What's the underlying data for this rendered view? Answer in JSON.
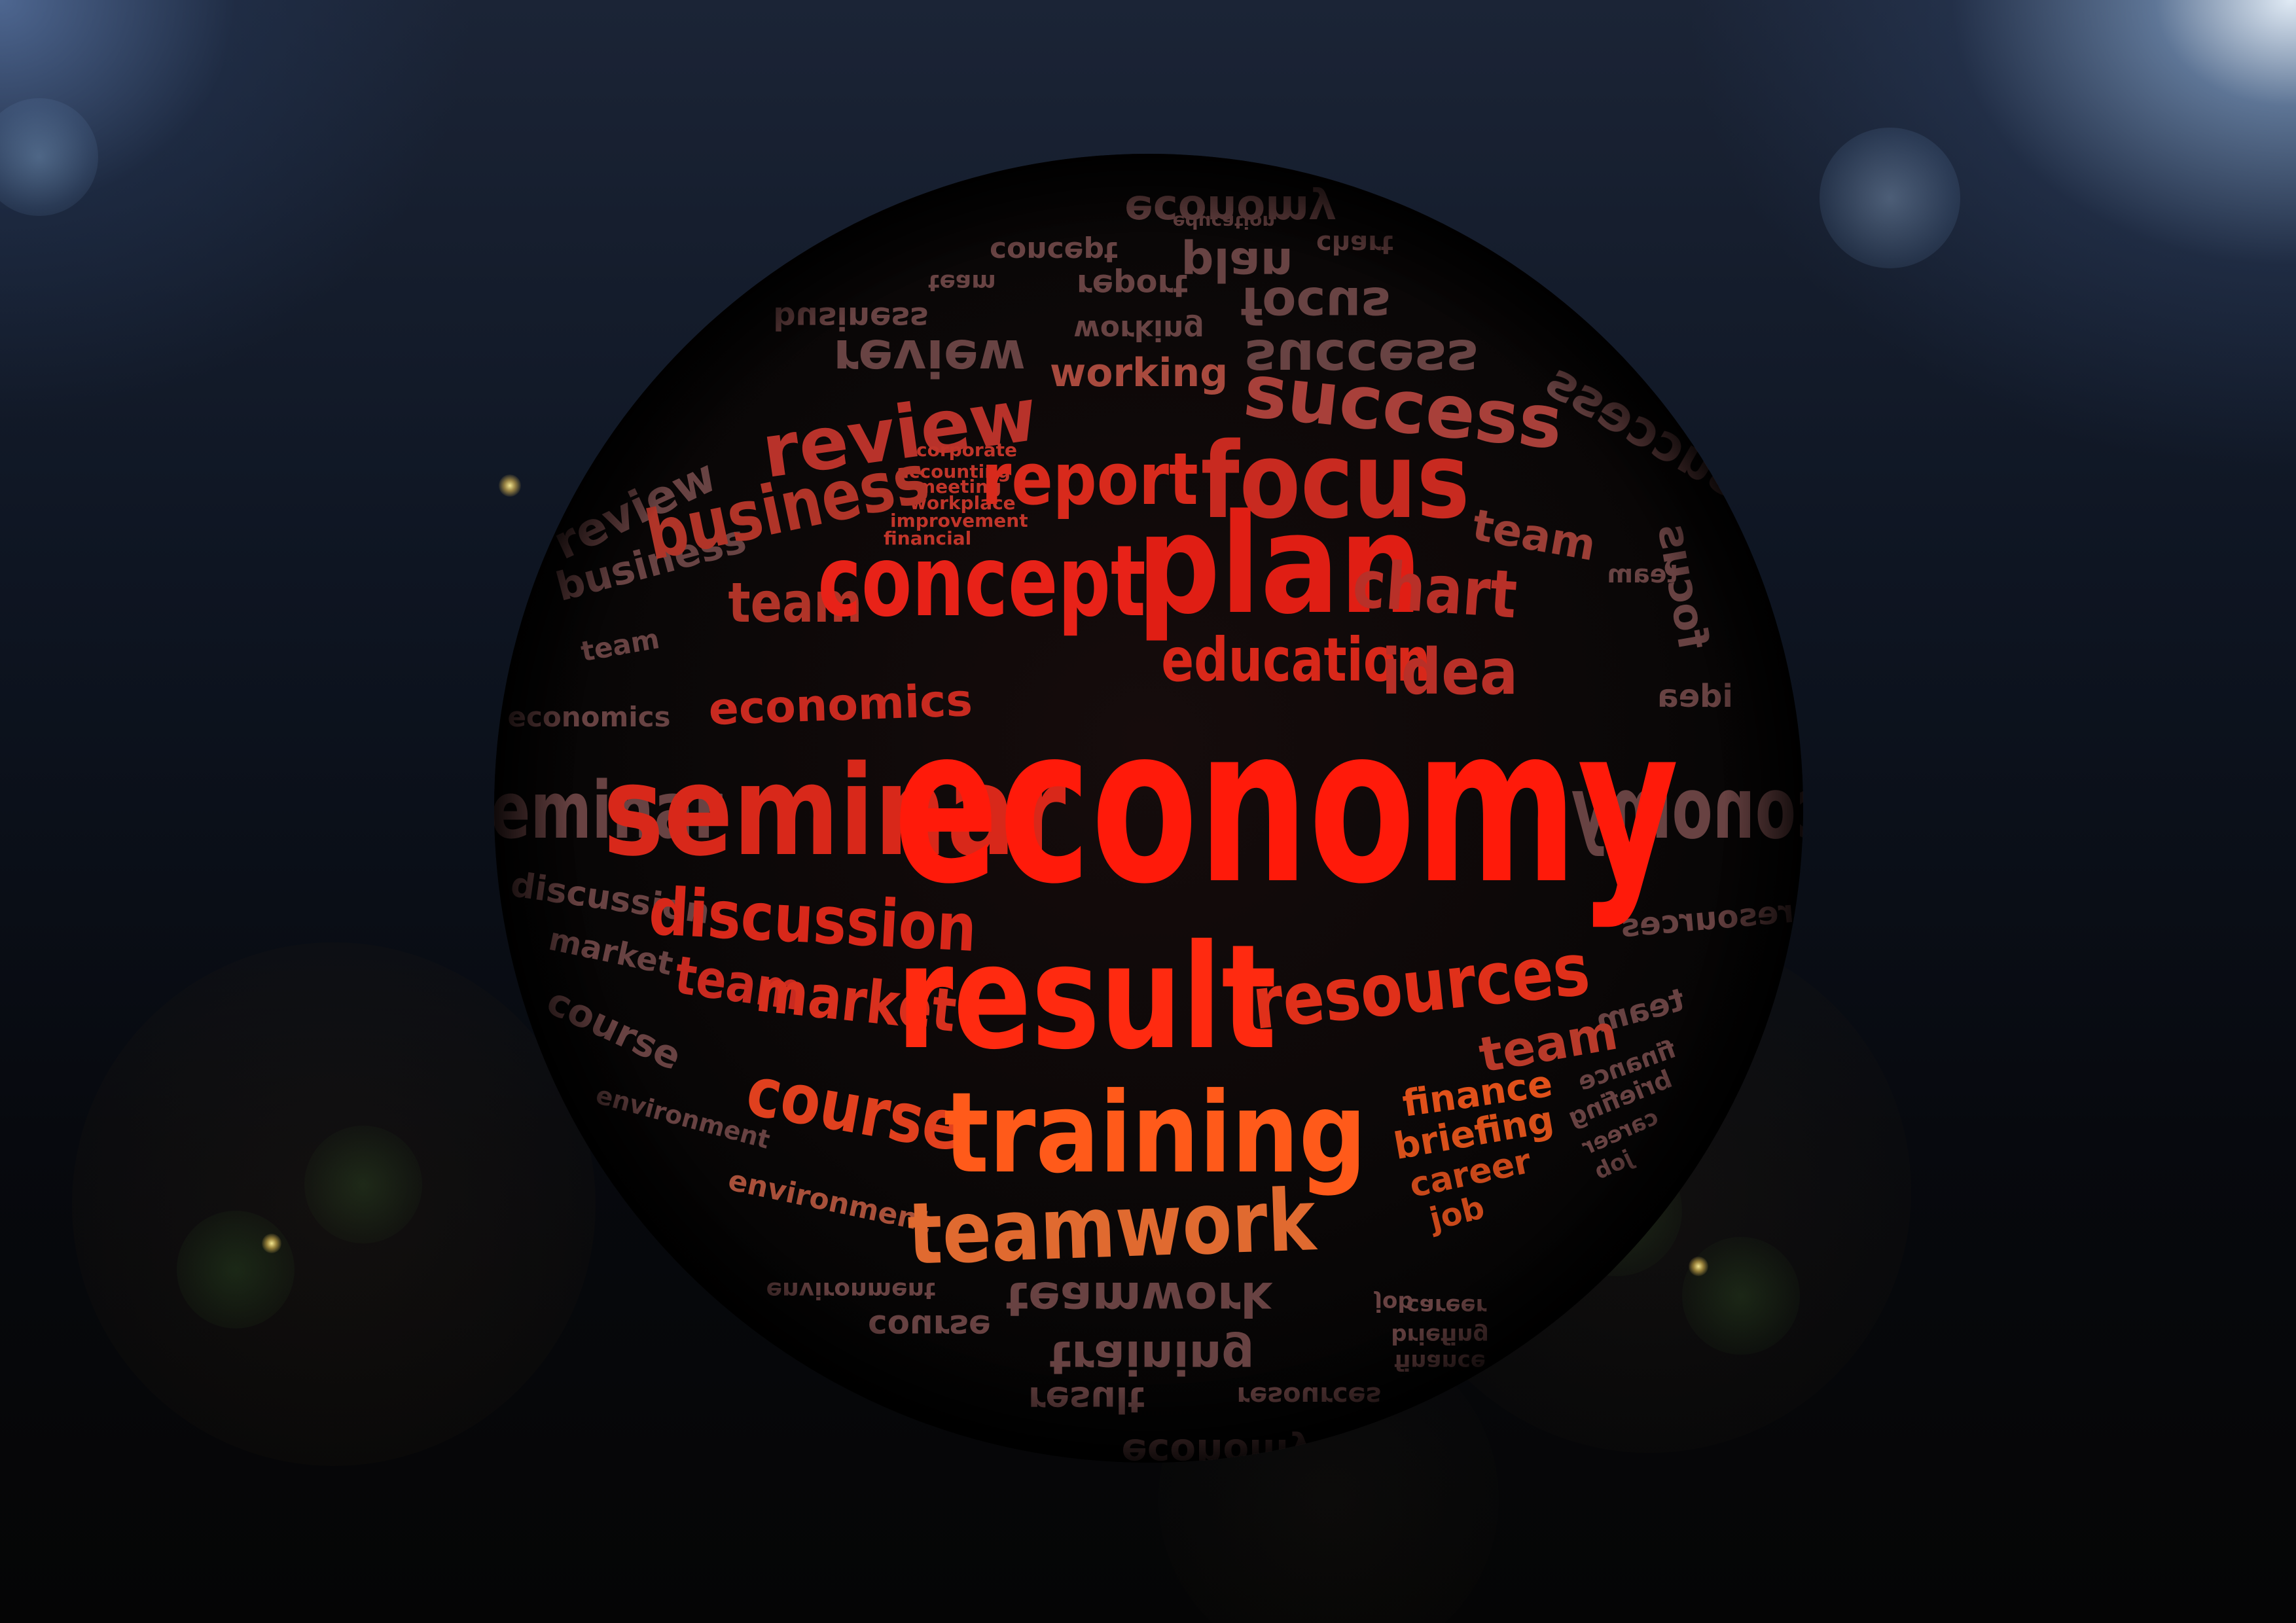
{
  "colors": {
    "accent": "#ff1a0a",
    "mid_red": "#e0301a",
    "orange": "#ff6a1a",
    "faded": "#8a5a5a",
    "background": "#07090f",
    "light": "#eaf4ff"
  },
  "words": {
    "economy": "economy",
    "seminar": "seminar",
    "result": "result",
    "plan": "plan",
    "focus": "focus",
    "training": "training",
    "teamwork": "teamwork",
    "concept": "concept",
    "review": "review",
    "success": "success",
    "business": "business",
    "report": "report",
    "chart": "chart",
    "idea": "idea",
    "education": "education",
    "economics": "economics",
    "discussion": "discussion",
    "resources": "resources",
    "team": "team",
    "market": "market",
    "course": "course",
    "environment": "environment",
    "finance": "finance",
    "briefing": "briefing",
    "career": "career",
    "job": "job",
    "working": "working",
    "corporate": "corporate",
    "accounting": "accounting",
    "meeting": "meeting",
    "workplace": "workplace",
    "improvement": "improvement",
    "financial": "financial"
  }
}
